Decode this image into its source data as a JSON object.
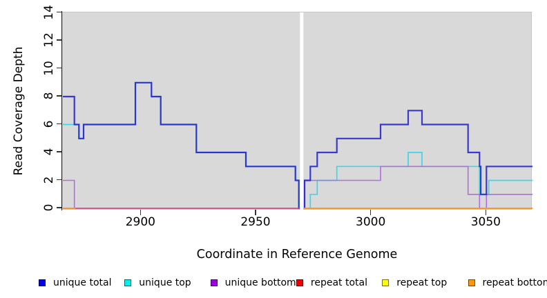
{
  "chart_data": {
    "type": "line",
    "subtype": "step-coverage",
    "title": "",
    "xlabel": "Coordinate in Reference Genome",
    "ylabel": "Read Coverage Depth",
    "xlim": [
      2866,
      3070
    ],
    "ylim": [
      0,
      14
    ],
    "x_ticks": [
      "2900",
      "2950",
      "3000",
      "3050"
    ],
    "x_tick_values": [
      2900,
      2950,
      3000,
      3050
    ],
    "y_ticks": [
      "0",
      "2",
      "4",
      "6",
      "8",
      "10",
      "12",
      "14"
    ],
    "y_tick_values": [
      0,
      2,
      4,
      6,
      8,
      10,
      12,
      14
    ],
    "grid": false,
    "plot_background": "#d9d9d9",
    "gap_x": [
      2969,
      2970.5
    ],
    "draw_order": [
      "unique top",
      "unique bottom",
      "unique total",
      "repeat total",
      "repeat top",
      "repeat bottom"
    ],
    "series": [
      {
        "name": "unique total",
        "legend_color": "#0000ee",
        "stroke": "#1c1ccd",
        "width": 2.2,
        "opacity": 0.85,
        "segments": [
          [
            [
              2866,
              8
            ],
            [
              2871,
              6
            ],
            [
              2873,
              5
            ],
            [
              2875,
              6
            ],
            [
              2897.5,
              9
            ],
            [
              2904.5,
              8
            ],
            [
              2908.5,
              6
            ],
            [
              2924,
              4
            ],
            [
              2945.5,
              3
            ],
            [
              2967,
              2
            ],
            [
              2968.5,
              0
            ],
            [
              2969,
              0
            ]
          ],
          [
            [
              2970.5,
              0
            ],
            [
              2971,
              2
            ],
            [
              2973.5,
              3
            ],
            [
              2976.5,
              4
            ],
            [
              2985,
              5
            ],
            [
              3004,
              6
            ],
            [
              3016,
              7
            ],
            [
              3022,
              6
            ],
            [
              3042,
              4
            ],
            [
              3047,
              3
            ],
            [
              3047.5,
              1
            ],
            [
              3050,
              3
            ],
            [
              3070,
              3
            ]
          ]
        ]
      },
      {
        "name": "unique top",
        "legend_color": "#00eeee",
        "stroke": "#3fd6e6",
        "width": 1.7,
        "opacity": 1,
        "segments": [
          [
            [
              2866,
              6
            ],
            [
              2873,
              5
            ],
            [
              2875,
              6
            ],
            [
              2897.5,
              9
            ],
            [
              2904.5,
              8
            ],
            [
              2908.5,
              6
            ],
            [
              2924,
              4
            ],
            [
              2945.5,
              3
            ],
            [
              2967,
              2
            ],
            [
              2968.5,
              0
            ],
            [
              2969,
              0
            ]
          ],
          [
            [
              2970.5,
              0
            ],
            [
              2973.5,
              1
            ],
            [
              2976.5,
              2
            ],
            [
              2985,
              3
            ],
            [
              3016,
              4
            ],
            [
              3022,
              3
            ],
            [
              3047,
              1
            ],
            [
              3051,
              2
            ],
            [
              3070,
              2
            ]
          ]
        ]
      },
      {
        "name": "unique bottom",
        "legend_color": "#9900dd",
        "stroke": "#b46be0",
        "width": 1.6,
        "opacity": 1,
        "segments": [
          [
            [
              2866,
              2
            ],
            [
              2871,
              0
            ],
            [
              2969,
              0
            ]
          ],
          [
            [
              2970.5,
              0
            ],
            [
              2971,
              2
            ],
            [
              3004,
              3
            ],
            [
              3042,
              1
            ],
            [
              3047,
              0
            ],
            [
              3050,
              1
            ],
            [
              3070,
              1
            ]
          ]
        ]
      },
      {
        "name": "repeat total",
        "legend_color": "#ee0000",
        "stroke": "#d6446e",
        "width": 1.6,
        "opacity": 1,
        "segments": [
          [
            [
              2866,
              0
            ],
            [
              2969,
              0
            ]
          ],
          [
            [
              2970.5,
              0
            ],
            [
              3070,
              0
            ]
          ]
        ]
      },
      {
        "name": "repeat top",
        "legend_color": "#ffff00",
        "stroke": "#ffee00",
        "width": 1.5,
        "opacity": 1,
        "segments": [
          [
            [
              2970.5,
              0
            ],
            [
              3070,
              0
            ]
          ]
        ]
      },
      {
        "name": "repeat bottom",
        "legend_color": "#ff9900",
        "stroke": "#ff9222",
        "width": 1.8,
        "opacity": 1,
        "segments": [
          [
            [
              2866,
              0
            ],
            [
              2871.5,
              0
            ]
          ],
          [
            [
              2970.5,
              0
            ],
            [
              3070,
              0
            ]
          ]
        ]
      }
    ]
  },
  "legend": {
    "items": [
      {
        "label": "unique total",
        "color": "#0000ee"
      },
      {
        "label": "unique top",
        "color": "#00eeee"
      },
      {
        "label": "unique bottom",
        "color": "#9900dd"
      },
      {
        "label": "repeat total",
        "color": "#ee0000"
      },
      {
        "label": "repeat top",
        "color": "#ffff00"
      },
      {
        "label": "repeat bottom",
        "color": "#ff9900"
      }
    ]
  }
}
